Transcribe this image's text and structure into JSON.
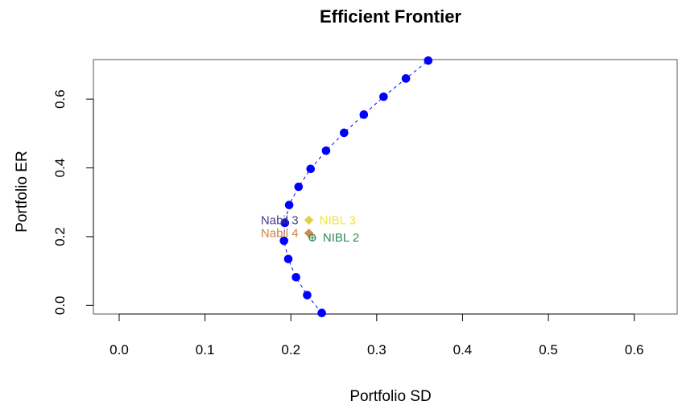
{
  "chart_data": {
    "type": "scatter",
    "title": "Efficient Frontier",
    "xlabel": "Portfolio SD",
    "ylabel": "Portfolio ER",
    "xlim": [
      -0.03,
      0.65
    ],
    "ylim": [
      -0.025,
      0.715
    ],
    "xticks": [
      "0.0",
      "0.1",
      "0.2",
      "0.3",
      "0.4",
      "0.5",
      "0.6"
    ],
    "yticks": [
      "0.0",
      "0.2",
      "0.4",
      "0.6"
    ],
    "grid": false,
    "legend": "none",
    "colors": {
      "frontier": "#0000ff",
      "nabil3": "#483d8b",
      "nabil4": "#cd853f",
      "nibl3": "#f0e442",
      "nibl2": "#2e8b57",
      "axis": "#000000",
      "box": "#555555"
    },
    "series": [
      {
        "points": [
          [
            0.236,
            -0.022
          ],
          [
            0.219,
            0.03
          ],
          [
            0.206,
            0.082
          ],
          [
            0.197,
            0.135
          ],
          [
            0.192,
            0.188
          ],
          [
            0.193,
            0.24
          ],
          [
            0.198,
            0.292
          ],
          [
            0.209,
            0.345
          ],
          [
            0.223,
            0.397
          ],
          [
            0.241,
            0.45
          ],
          [
            0.262,
            0.502
          ],
          [
            0.285,
            0.555
          ],
          [
            0.308,
            0.607
          ],
          [
            0.334,
            0.66
          ],
          [
            0.36,
            0.712
          ]
        ]
      }
    ],
    "annotations": [
      {
        "text": "Nabil 3",
        "x": 0.221,
        "y": 0.248,
        "side": "left",
        "color_key": "nabil3",
        "marker": "diamond"
      },
      {
        "text": "Nabil 4",
        "x": 0.221,
        "y": 0.21,
        "side": "left",
        "color_key": "nabil4",
        "marker": "diamond-plus"
      },
      {
        "text": "NIBL 3",
        "x": 0.221,
        "y": 0.248,
        "side": "right",
        "color_key": "nibl3",
        "marker": "diamond"
      },
      {
        "text": "NIBL 2",
        "x": 0.225,
        "y": 0.197,
        "side": "right",
        "color_key": "nibl2",
        "marker": "circle-plus"
      }
    ]
  }
}
